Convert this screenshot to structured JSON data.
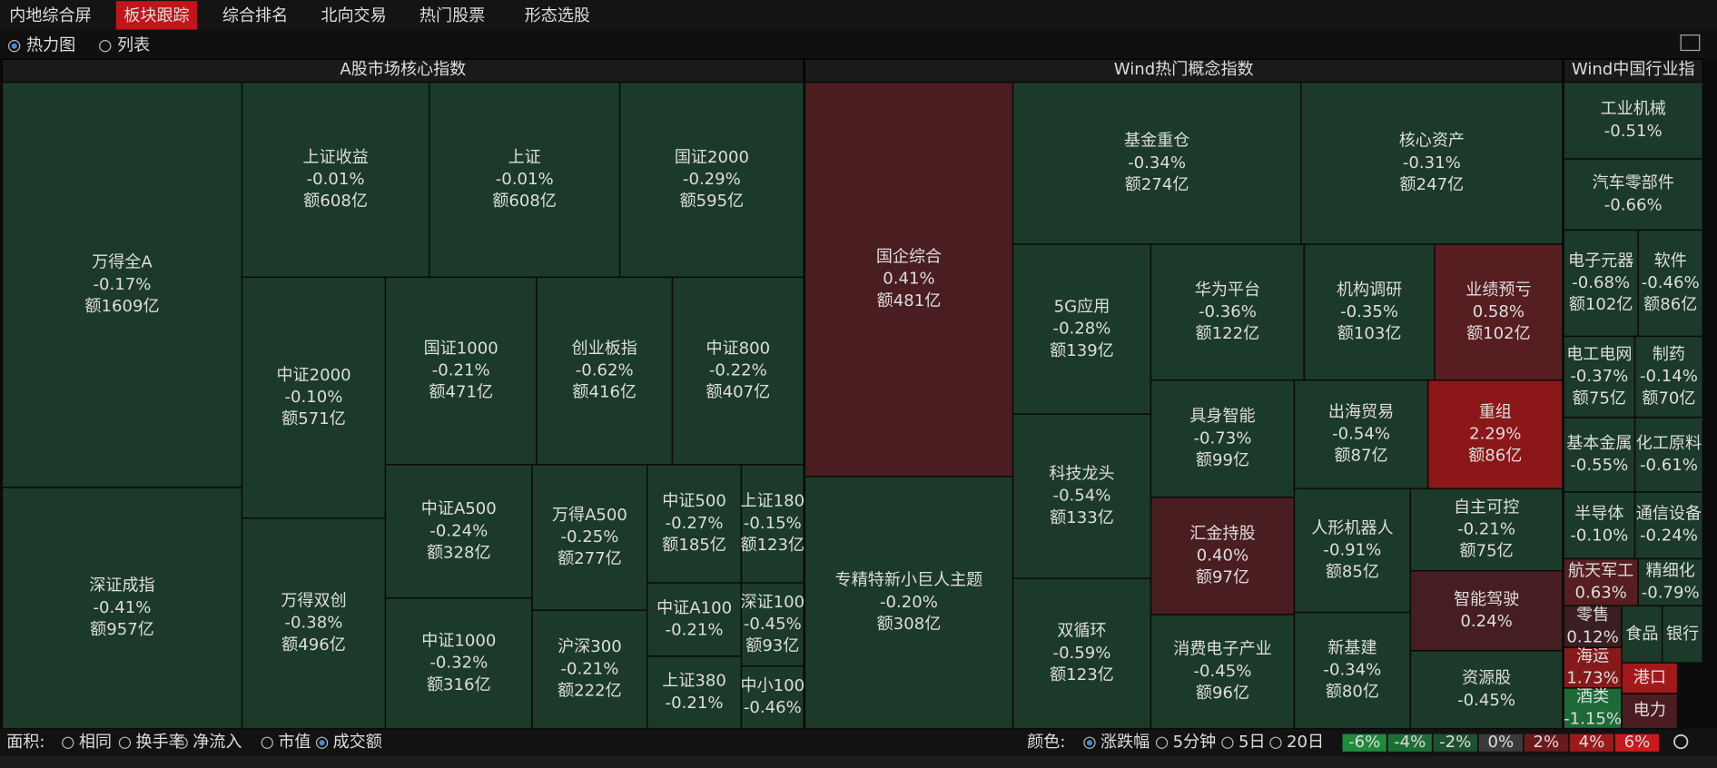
{
  "tabs": [
    "内地综合屏",
    "板块跟踪",
    "综合排名",
    "北向交易",
    "热门股票",
    "形态选股"
  ],
  "active_tab": 1,
  "view_options": [
    "热力图",
    "列表"
  ],
  "view_selected": 0,
  "sections": [
    {
      "title": "A股市场核心指数",
      "tiles": [
        {
          "name": "万得全A",
          "change": "-0.17%",
          "amount": "额1609亿",
          "color": "#1c3a2a"
        },
        {
          "name": "深证成指",
          "change": "-0.41%",
          "amount": "额957亿",
          "color": "#1c3a2a"
        },
        {
          "name": "上证收益",
          "change": "-0.01%",
          "amount": "额608亿",
          "color": "#1c3a2a"
        },
        {
          "name": "上证",
          "change": "-0.01%",
          "amount": "额608亿",
          "color": "#1c3a2a"
        },
        {
          "name": "国证2000",
          "change": "-0.29%",
          "amount": "额595亿",
          "color": "#1c3a2a"
        },
        {
          "name": "中证2000",
          "change": "-0.10%",
          "amount": "额571亿",
          "color": "#1c3a2a"
        },
        {
          "name": "万得双创",
          "change": "-0.38%",
          "amount": "额496亿",
          "color": "#1c3a2a"
        },
        {
          "name": "国证1000",
          "change": "-0.21%",
          "amount": "额471亿",
          "color": "#1c3a2a"
        },
        {
          "name": "创业板指",
          "change": "-0.62%",
          "amount": "额416亿",
          "color": "#1c3a2a"
        },
        {
          "name": "中证800",
          "change": "-0.22%",
          "amount": "额407亿",
          "color": "#1c3a2a"
        },
        {
          "name": "中证A500",
          "change": "-0.24%",
          "amount": "额328亿",
          "color": "#1c3a2a"
        },
        {
          "name": "中证1000",
          "change": "-0.32%",
          "amount": "额316亿",
          "color": "#1c3a2a"
        },
        {
          "name": "万得A500",
          "change": "-0.25%",
          "amount": "额277亿",
          "color": "#1c3a2a"
        },
        {
          "name": "沪深300",
          "change": "-0.21%",
          "amount": "额222亿",
          "color": "#1c3a2a"
        },
        {
          "name": "中证500",
          "change": "-0.27%",
          "amount": "额185亿",
          "color": "#1c3a2a"
        },
        {
          "name": "上证180",
          "change": "-0.15%",
          "amount": "额123亿",
          "color": "#1c3a2a"
        },
        {
          "name": "中证A100",
          "change": "-0.21%",
          "color": "#1c3a2a"
        },
        {
          "name": "深证100",
          "change": "-0.45%",
          "amount": "额93亿",
          "color": "#1c3a2a"
        },
        {
          "name": "上证380",
          "change": "-0.21%",
          "color": "#1c3a2a"
        },
        {
          "name": "中小100",
          "change": "-0.46%",
          "color": "#1c3a2a"
        }
      ]
    },
    {
      "title": "Wind热门概念指数",
      "tiles": [
        {
          "name": "国企综合",
          "change": "0.41%",
          "amount": "额481亿",
          "color": "#4a1d20"
        },
        {
          "name": "专精特新小巨人主题",
          "change": "-0.20%",
          "amount": "额308亿",
          "color": "#1c3a2a"
        },
        {
          "name": "基金重仓",
          "change": "-0.34%",
          "amount": "额274亿",
          "color": "#1c3a2a"
        },
        {
          "name": "核心资产",
          "change": "-0.31%",
          "amount": "额247亿",
          "color": "#1c3a2a"
        },
        {
          "name": "5G应用",
          "change": "-0.28%",
          "amount": "额139亿",
          "color": "#1c3a2a"
        },
        {
          "name": "科技龙头",
          "change": "-0.54%",
          "amount": "额133亿",
          "color": "#1c3a2a"
        },
        {
          "name": "双循环",
          "change": "-0.59%",
          "amount": "额123亿",
          "color": "#1c3a2a"
        },
        {
          "name": "华为平台",
          "change": "-0.36%",
          "amount": "额122亿",
          "color": "#1c3a2a"
        },
        {
          "name": "机构调研",
          "change": "-0.35%",
          "amount": "额103亿",
          "color": "#1c3a2a"
        },
        {
          "name": "业绩预亏",
          "change": "0.58%",
          "amount": "额102亿",
          "color": "#561e21"
        },
        {
          "name": "具身智能",
          "change": "-0.73%",
          "amount": "额99亿",
          "color": "#1c3a2a"
        },
        {
          "name": "出海贸易",
          "change": "-0.54%",
          "amount": "额87亿",
          "color": "#1c3a2a"
        },
        {
          "name": "重组",
          "change": "2.29%",
          "amount": "额86亿",
          "color": "#8c1718"
        },
        {
          "name": "汇金持股",
          "change": "0.40%",
          "amount": "额97亿",
          "color": "#4a1d20"
        },
        {
          "name": "消费电子产业",
          "change": "-0.45%",
          "amount": "额96亿",
          "color": "#1c3a2a"
        },
        {
          "name": "人形机器人",
          "change": "-0.91%",
          "amount": "额85亿",
          "color": "#1c3a2a"
        },
        {
          "name": "新基建",
          "change": "-0.34%",
          "amount": "额80亿",
          "color": "#1c3a2a"
        },
        {
          "name": "自主可控",
          "change": "-0.21%",
          "amount": "额75亿",
          "color": "#1c3a2a"
        },
        {
          "name": "智能驾驶",
          "change": "0.24%",
          "color": "#461d20"
        },
        {
          "name": "资源股",
          "change": "-0.45%",
          "color": "#1c3a2a"
        }
      ]
    },
    {
      "title": "Wind中国行业指",
      "tiles": [
        {
          "name": "工业机械",
          "change": "-0.51%",
          "color": "#1c3a2a"
        },
        {
          "name": "汽车零部件",
          "change": "-0.66%",
          "color": "#1c3a2a"
        },
        {
          "name": "电子元器",
          "change": "-0.68%",
          "amount": "额102亿",
          "color": "#1c3a2a"
        },
        {
          "name": "软件",
          "change": "-0.46%",
          "amount": "额86亿",
          "color": "#1c3a2a"
        },
        {
          "name": "电工电网",
          "change": "-0.37%",
          "amount": "额75亿",
          "color": "#1c3a2a"
        },
        {
          "name": "制药",
          "change": "-0.14%",
          "amount": "额70亿",
          "color": "#1c3a2a"
        },
        {
          "name": "基本金属",
          "change": "-0.55%",
          "color": "#1c3a2a"
        },
        {
          "name": "化工原料",
          "change": "-0.61%",
          "color": "#1c3a2a"
        },
        {
          "name": "半导体",
          "change": "-0.10%",
          "color": "#1c3a2a"
        },
        {
          "name": "通信设备",
          "change": "-0.24%",
          "color": "#1c3a2a"
        },
        {
          "name": "航天军工",
          "change": "0.63%",
          "color": "#561e21"
        },
        {
          "name": "精细化",
          "change": "-0.79%",
          "color": "#1c3a2a"
        },
        {
          "name": "零售",
          "change": "0.12%",
          "color": "#3a1e20"
        },
        {
          "name": "食品",
          "color": "#1c3a2a"
        },
        {
          "name": "银行",
          "color": "#1c3a2a"
        },
        {
          "name": "海运",
          "change": "1.73%",
          "color": "#861a1b"
        },
        {
          "name": "港口",
          "color": "#a3181a"
        },
        {
          "name": "酒类",
          "change": "-1.15%",
          "color": "#1e6a36"
        },
        {
          "name": "电力",
          "color": "#4a1d20"
        }
      ]
    }
  ],
  "area_label": "面积:",
  "area_options": [
    "相同",
    "换手率",
    "净流入",
    "市值",
    "成交额"
  ],
  "area_selected": 4,
  "color_label": "颜色:",
  "color_options": [
    "涨跌幅",
    "5分钟",
    "5日",
    "20日"
  ],
  "color_selected": 0,
  "legend": [
    {
      "label": "-6%",
      "color": "#1f8a3c"
    },
    {
      "label": "-4%",
      "color": "#1d6e35"
    },
    {
      "label": "-2%",
      "color": "#1d5130"
    },
    {
      "label": "0%",
      "color": "#3a3a3a"
    },
    {
      "label": "2%",
      "color": "#6a1a1c"
    },
    {
      "label": "4%",
      "color": "#9c1a1c"
    },
    {
      "label": "6%",
      "color": "#c8191c"
    }
  ]
}
